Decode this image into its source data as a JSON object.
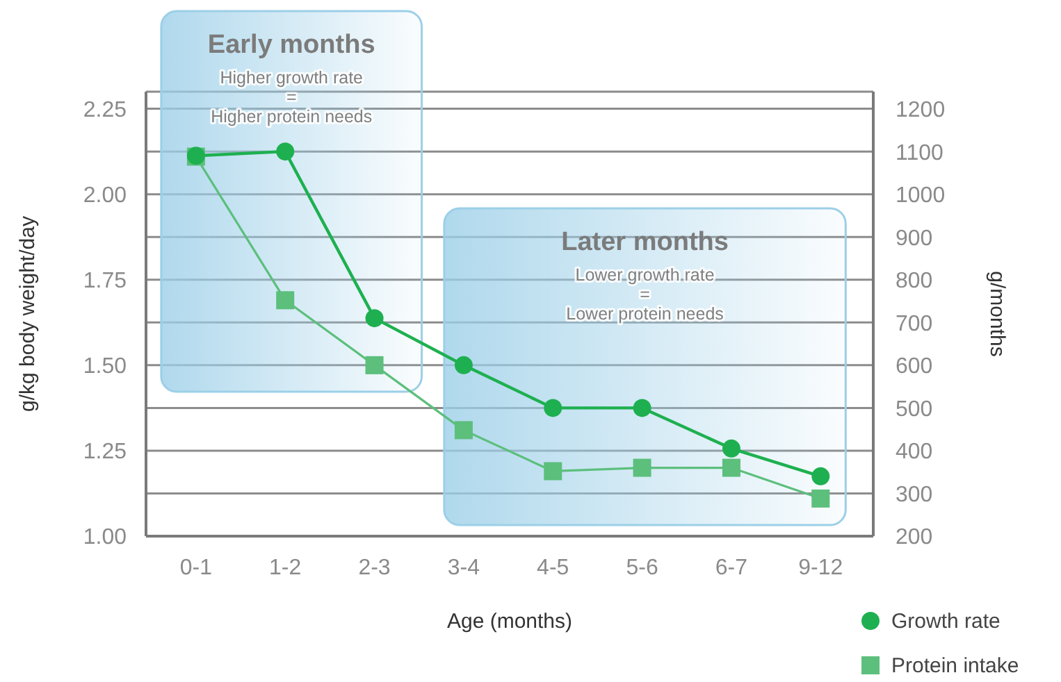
{
  "chart_data": {
    "type": "line",
    "xlabel": "Age (months)",
    "ylabel": "g/kg body weight/day",
    "y2label": "g/months",
    "categories": [
      "0-1",
      "1-2",
      "2-3",
      "3-4",
      "4-5",
      "5-6",
      "6-7",
      "9-12"
    ],
    "series": [
      {
        "name": "Growth rate",
        "color": "#1eb050",
        "axis": "y2",
        "marker": "circle",
        "values": [
          1090,
          1100,
          710,
          600,
          500,
          500,
          405,
          340
        ]
      },
      {
        "name": "Protein intake",
        "color": "#5cbf7c",
        "marker": "square",
        "values": [
          2.11,
          1.69,
          1.5,
          1.31,
          1.19,
          1.2,
          1.2,
          1.11
        ]
      }
    ],
    "ylim": [
      1,
      2.3
    ],
    "yticks": [
      {
        "value": 1,
        "label": "1.00"
      },
      1.25,
      {
        "value": 1.5,
        "label": "1.50"
      },
      1.75,
      {
        "value": 2,
        "label": "2.00"
      },
      2.25
    ],
    "y2lim": [
      200,
      1240
    ],
    "y2ticks": [
      200,
      300,
      400,
      500,
      600,
      700,
      800,
      900,
      1000,
      1100,
      1200
    ],
    "grid": "y",
    "legend": "bottom right",
    "bands": [
      {
        "axis": "x",
        "from": "0-1",
        "to": "2-3",
        "label": "Early months",
        "color": "#9ccfe8"
      },
      {
        "axis": "x",
        "from": "3-4",
        "to": "9-12",
        "label": "Later months",
        "color": "#9ccfe8"
      }
    ],
    "annotations": [
      "Higher growth rate\n=\nHigher protein needs",
      "Lower growth rate\n=\nLower protein needs"
    ]
  }
}
